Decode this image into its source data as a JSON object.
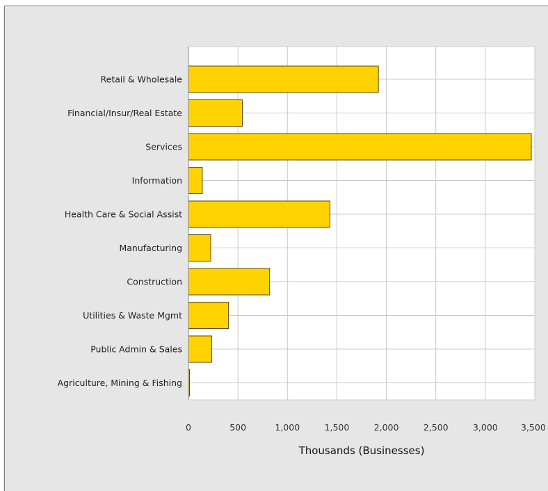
{
  "chart_data": {
    "type": "bar",
    "orientation": "horizontal",
    "title": "",
    "xlabel": "Thousands (Businesses)",
    "ylabel": "",
    "xlim": [
      0,
      3500
    ],
    "x_ticks": [
      "0",
      "500",
      "1,000",
      "1,500",
      "2,000",
      "2,500",
      "3,000",
      "3,500"
    ],
    "grid": true,
    "categories": [
      "Retail & Wholesale",
      "Financial/Insur/Real Estate",
      "Services",
      "Information",
      "Health Care & Social Assist",
      "Manufacturing",
      "Construction",
      "Utilities & Waste Mgmt",
      "Public Admin & Sales",
      "Agriculture, Mining & Fishing"
    ],
    "values": [
      1920,
      545,
      3465,
      140,
      1430,
      225,
      820,
      405,
      235,
      8
    ],
    "colors": {
      "bar": "#ffd200",
      "bar_stroke": "#5a4a00",
      "grid": "#c8c8c8",
      "plot_bg": "#ffffff",
      "panel_bg": "#e6e6e6"
    }
  }
}
